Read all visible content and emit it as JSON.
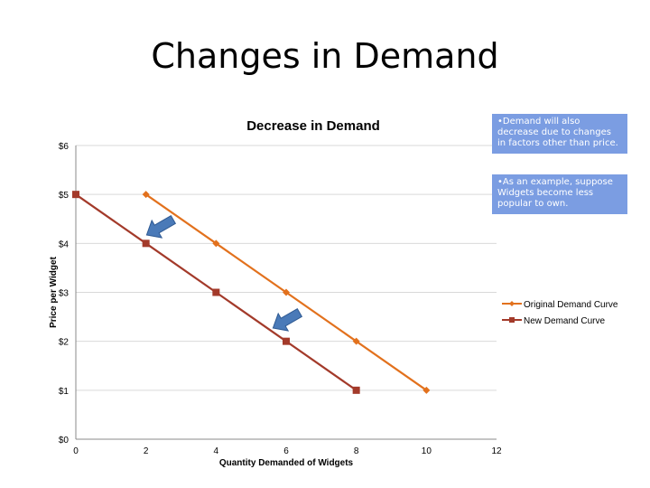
{
  "slide": {
    "title": "Changes in Demand",
    "note1": "•Demand will also decrease due to changes in factors other than price.",
    "note2": "•As an example, suppose Widgets become less popular to own."
  },
  "colors": {
    "original": "#e2711d",
    "new": "#a33a2a",
    "arrow": "#4a7ab8",
    "grid": "#d9d9d9"
  },
  "annotations": {
    "arrow_icons": [
      "arrow-icon",
      "arrow-icon"
    ]
  },
  "chart_data": {
    "type": "line",
    "title": "Decrease in Demand",
    "xlabel": "Quantity Demanded of Widgets",
    "ylabel": "Price per Widget",
    "xlim": [
      0,
      12
    ],
    "ylim": [
      0,
      6
    ],
    "xticks": [
      0,
      2,
      4,
      6,
      8,
      10,
      12
    ],
    "yticks": [
      0,
      1,
      2,
      3,
      4,
      5,
      6
    ],
    "ytick_labels": [
      "$0",
      "$1",
      "$2",
      "$3",
      "$4",
      "$5",
      "$6"
    ],
    "grid": true,
    "legend": "right",
    "series": [
      {
        "name": "Original Demand Curve",
        "x": [
          2,
          4,
          6,
          8,
          10
        ],
        "y": [
          5,
          4,
          3,
          2,
          1
        ],
        "marker": "diamond"
      },
      {
        "name": "New Demand Curve",
        "x": [
          0,
          2,
          4,
          6,
          8
        ],
        "y": [
          5,
          4,
          3,
          2,
          1
        ],
        "marker": "square"
      }
    ]
  }
}
